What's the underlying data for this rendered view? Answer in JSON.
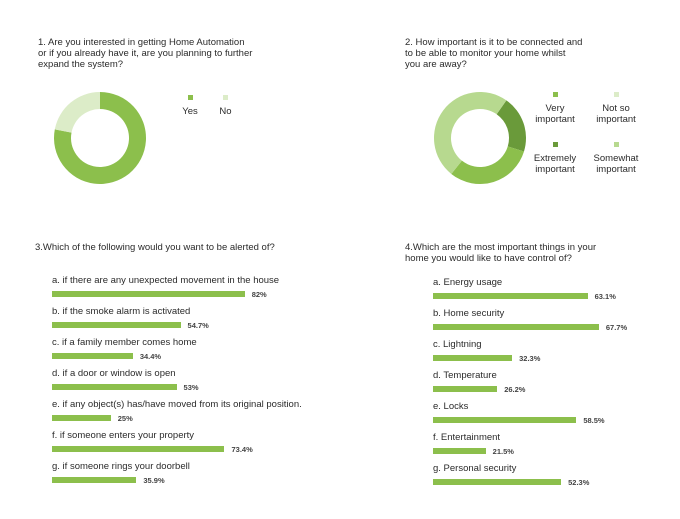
{
  "colors": {
    "bar": "#8cbf4c",
    "green_main": "#8cbf4c",
    "green_pale": "#dcecc8",
    "green_dark": "#6a9a3a",
    "green_light": "#b7d98f",
    "hole": "#ffffff"
  },
  "chart_data": [
    {
      "type": "pie",
      "title": "1. Are you interested in getting Home Automation\nor if you already have it, are you planning to further\nexpand the system?",
      "categories": [
        "Yes",
        "No"
      ],
      "values": [
        78,
        22
      ],
      "colors": [
        "#8cbf4c",
        "#dcecc8"
      ],
      "legend": "right"
    },
    {
      "type": "pie",
      "title": "2. How important is it to be connected and\nto be able to monitor your home whilst\nyou are away?",
      "categories": [
        "Very\nimportant",
        "Not so\nimportant",
        "Extremely\nimportant",
        "Somewhat\nimportant"
      ],
      "values": [
        31,
        0,
        20,
        49
      ],
      "colors": [
        "#8cbf4c",
        "#dcecc8",
        "#6a9a3a",
        "#b7d98f"
      ],
      "segment_order": [
        2,
        0,
        3
      ],
      "legend": "right"
    },
    {
      "type": "bar",
      "orientation": "horizontal",
      "title": "3.Which of the following would you want to be alerted of?",
      "categories": [
        "a. if there are any unexpected movement in the house",
        "b. if the smoke alarm is activated",
        "c. if a family member comes home",
        "d. if a door or window is open",
        "e. if any object(s) has/have moved from its original position.",
        "f. if someone enters your property",
        "g. if someone rings your doorbell"
      ],
      "values": [
        82,
        54.7,
        34.4,
        53,
        25,
        73.4,
        35.9
      ],
      "value_labels": [
        "82%",
        "54.7%",
        "34.4%",
        "53%",
        "25%",
        "73.4%",
        "35.9%"
      ],
      "xlim": [
        0,
        100
      ]
    },
    {
      "type": "bar",
      "orientation": "horizontal",
      "title": "4.Which are the most important things in your\nhome you would like to have control of?",
      "categories": [
        "a. Energy usage",
        "b. Home security",
        "c. Lightning",
        "d. Temperature",
        "e. Locks",
        "f. Entertainment",
        "g. Personal security"
      ],
      "values": [
        63.1,
        67.7,
        32.3,
        26.2,
        58.5,
        21.5,
        52.3
      ],
      "value_labels": [
        "63.1%",
        "67.7%",
        "32.3%",
        "26.2%",
        "58.5%",
        "21.5%",
        "52.3%"
      ],
      "xlim": [
        0,
        100
      ]
    }
  ]
}
